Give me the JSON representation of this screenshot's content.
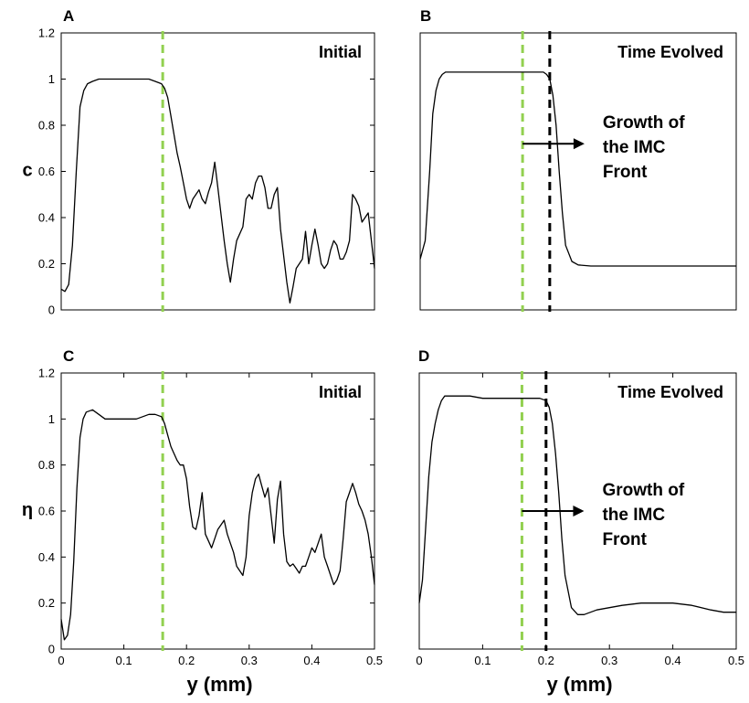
{
  "chart_data": [
    {
      "panel": "A",
      "type": "line",
      "inset_label": "Initial",
      "ylabel": "c",
      "xlabel": "",
      "xlim": [
        0,
        0.5
      ],
      "ylim": [
        0,
        1.2
      ],
      "x_ticks": [],
      "y_ticks": [
        "0",
        "0.2",
        "0.4",
        "0.6",
        "0.8",
        "1",
        "1.2"
      ],
      "y_tick_values": [
        0,
        0.2,
        0.4,
        0.6,
        0.8,
        1,
        1.2
      ],
      "vlines": [
        {
          "x": 0.162,
          "color": "#92d050"
        }
      ],
      "annotation": null,
      "series": [
        {
          "x": [
            0,
            0.006,
            0.012,
            0.018,
            0.024,
            0.03,
            0.036,
            0.042,
            0.05,
            0.06,
            0.07,
            0.08,
            0.09,
            0.1,
            0.11,
            0.12,
            0.13,
            0.14,
            0.15,
            0.16,
            0.165,
            0.17,
            0.175,
            0.18,
            0.185,
            0.19,
            0.195,
            0.2,
            0.205,
            0.21,
            0.215,
            0.22,
            0.225,
            0.23,
            0.235,
            0.24,
            0.245,
            0.25,
            0.26,
            0.265,
            0.27,
            0.275,
            0.28,
            0.285,
            0.29,
            0.295,
            0.3,
            0.305,
            0.31,
            0.315,
            0.32,
            0.325,
            0.33,
            0.335,
            0.34,
            0.345,
            0.35,
            0.36,
            0.365,
            0.37,
            0.375,
            0.38,
            0.385,
            0.39,
            0.395,
            0.4,
            0.405,
            0.41,
            0.415,
            0.42,
            0.425,
            0.43,
            0.435,
            0.44,
            0.445,
            0.45,
            0.455,
            0.46,
            0.465,
            0.47,
            0.475,
            0.48,
            0.485,
            0.49,
            0.495,
            0.5
          ],
          "y": [
            0.09,
            0.08,
            0.11,
            0.28,
            0.6,
            0.88,
            0.95,
            0.98,
            0.99,
            1.0,
            1.0,
            1.0,
            1.0,
            1.0,
            1.0,
            1.0,
            1.0,
            1.0,
            0.99,
            0.98,
            0.96,
            0.92,
            0.84,
            0.76,
            0.68,
            0.62,
            0.55,
            0.48,
            0.44,
            0.48,
            0.5,
            0.52,
            0.48,
            0.46,
            0.51,
            0.55,
            0.64,
            0.53,
            0.3,
            0.2,
            0.12,
            0.22,
            0.3,
            0.33,
            0.36,
            0.48,
            0.5,
            0.48,
            0.55,
            0.58,
            0.58,
            0.53,
            0.44,
            0.44,
            0.5,
            0.53,
            0.35,
            0.12,
            0.03,
            0.1,
            0.18,
            0.2,
            0.22,
            0.34,
            0.2,
            0.28,
            0.35,
            0.28,
            0.2,
            0.18,
            0.2,
            0.26,
            0.3,
            0.28,
            0.22,
            0.22,
            0.25,
            0.3,
            0.5,
            0.48,
            0.45,
            0.38,
            0.4,
            0.42,
            0.3,
            0.18
          ]
        }
      ]
    },
    {
      "panel": "B",
      "type": "line",
      "inset_label": "Time Evolved",
      "ylabel": "",
      "xlabel": "",
      "xlim": [
        0,
        0.5
      ],
      "ylim": [
        0,
        1.2
      ],
      "x_ticks": [],
      "y_ticks": [],
      "y_tick_values": [],
      "vlines": [
        {
          "x": 0.162,
          "color": "#92d050"
        },
        {
          "x": 0.205,
          "color": "#000000"
        }
      ],
      "annotation": {
        "lines": [
          "Growth of",
          "the IMC",
          "Front"
        ],
        "arrow_from_x": 0.162,
        "arrow_to_x": 0.26,
        "arrow_y": 0.72
      },
      "series": [
        {
          "x": [
            0,
            0.008,
            0.015,
            0.02,
            0.025,
            0.03,
            0.035,
            0.04,
            0.05,
            0.06,
            0.08,
            0.1,
            0.12,
            0.14,
            0.16,
            0.18,
            0.195,
            0.2,
            0.205,
            0.21,
            0.215,
            0.22,
            0.225,
            0.23,
            0.24,
            0.25,
            0.27,
            0.3,
            0.35,
            0.4,
            0.45,
            0.48,
            0.5
          ],
          "y": [
            0.22,
            0.3,
            0.6,
            0.85,
            0.95,
            1.0,
            1.02,
            1.03,
            1.03,
            1.03,
            1.03,
            1.03,
            1.03,
            1.03,
            1.03,
            1.03,
            1.03,
            1.02,
            1.0,
            0.93,
            0.8,
            0.6,
            0.42,
            0.28,
            0.21,
            0.195,
            0.19,
            0.19,
            0.19,
            0.19,
            0.19,
            0.19,
            0.19
          ]
        }
      ]
    },
    {
      "panel": "C",
      "type": "line",
      "inset_label": "Initial",
      "ylabel": "η",
      "xlabel": "y (mm)",
      "xlim": [
        0,
        0.5
      ],
      "ylim": [
        0,
        1.2
      ],
      "x_ticks": [
        "0",
        "0.1",
        "0.2",
        "0.3",
        "0.4",
        "0.5"
      ],
      "x_tick_values": [
        0,
        0.1,
        0.2,
        0.3,
        0.4,
        0.5
      ],
      "y_ticks": [
        "0",
        "0.2",
        "0.4",
        "0.6",
        "0.8",
        "1",
        "1.2"
      ],
      "y_tick_values": [
        0,
        0.2,
        0.4,
        0.6,
        0.8,
        1,
        1.2
      ],
      "vlines": [
        {
          "x": 0.162,
          "color": "#92d050"
        }
      ],
      "annotation": null,
      "series": [
        {
          "x": [
            0,
            0.005,
            0.01,
            0.015,
            0.02,
            0.025,
            0.03,
            0.035,
            0.04,
            0.05,
            0.06,
            0.07,
            0.08,
            0.09,
            0.1,
            0.11,
            0.12,
            0.13,
            0.14,
            0.15,
            0.16,
            0.165,
            0.17,
            0.175,
            0.18,
            0.185,
            0.19,
            0.195,
            0.2,
            0.205,
            0.21,
            0.215,
            0.22,
            0.225,
            0.23,
            0.235,
            0.24,
            0.245,
            0.25,
            0.26,
            0.265,
            0.27,
            0.275,
            0.28,
            0.29,
            0.295,
            0.3,
            0.305,
            0.31,
            0.315,
            0.32,
            0.325,
            0.33,
            0.335,
            0.34,
            0.345,
            0.35,
            0.355,
            0.36,
            0.365,
            0.37,
            0.375,
            0.38,
            0.385,
            0.39,
            0.395,
            0.4,
            0.405,
            0.41,
            0.415,
            0.42,
            0.425,
            0.43,
            0.435,
            0.44,
            0.445,
            0.45,
            0.455,
            0.46,
            0.465,
            0.47,
            0.475,
            0.48,
            0.485,
            0.49,
            0.495,
            0.5
          ],
          "y": [
            0.13,
            0.04,
            0.06,
            0.15,
            0.38,
            0.7,
            0.92,
            1.0,
            1.03,
            1.04,
            1.02,
            1.0,
            1.0,
            1.0,
            1.0,
            1.0,
            1.0,
            1.01,
            1.02,
            1.02,
            1.01,
            0.98,
            0.93,
            0.88,
            0.85,
            0.82,
            0.8,
            0.8,
            0.74,
            0.62,
            0.53,
            0.52,
            0.58,
            0.68,
            0.5,
            0.47,
            0.44,
            0.48,
            0.52,
            0.56,
            0.5,
            0.46,
            0.42,
            0.36,
            0.32,
            0.4,
            0.58,
            0.68,
            0.74,
            0.76,
            0.71,
            0.66,
            0.7,
            0.58,
            0.46,
            0.65,
            0.73,
            0.5,
            0.38,
            0.36,
            0.37,
            0.35,
            0.33,
            0.36,
            0.36,
            0.4,
            0.44,
            0.42,
            0.46,
            0.5,
            0.4,
            0.36,
            0.32,
            0.28,
            0.3,
            0.34,
            0.48,
            0.64,
            0.68,
            0.72,
            0.68,
            0.63,
            0.6,
            0.56,
            0.5,
            0.4,
            0.28
          ]
        }
      ]
    },
    {
      "panel": "D",
      "type": "line",
      "inset_label": "Time Evolved",
      "ylabel": "",
      "xlabel": "y (mm)",
      "xlim": [
        0,
        0.5
      ],
      "ylim": [
        0,
        1.2
      ],
      "x_ticks": [
        "0",
        "0.1",
        "0.2",
        "0.3",
        "0.4",
        "0.5"
      ],
      "x_tick_values": [
        0,
        0.1,
        0.2,
        0.3,
        0.4,
        0.5
      ],
      "y_ticks": [],
      "y_tick_values": [],
      "vlines": [
        {
          "x": 0.162,
          "color": "#92d050"
        },
        {
          "x": 0.2,
          "color": "#000000"
        }
      ],
      "annotation": {
        "lines": [
          "Growth of",
          "the IMC",
          "Front"
        ],
        "arrow_from_x": 0.162,
        "arrow_to_x": 0.26,
        "arrow_y": 0.6
      },
      "series": [
        {
          "x": [
            0,
            0.005,
            0.01,
            0.015,
            0.02,
            0.025,
            0.03,
            0.035,
            0.04,
            0.05,
            0.06,
            0.08,
            0.1,
            0.12,
            0.14,
            0.16,
            0.18,
            0.19,
            0.2,
            0.205,
            0.21,
            0.215,
            0.22,
            0.225,
            0.23,
            0.24,
            0.25,
            0.26,
            0.28,
            0.3,
            0.32,
            0.35,
            0.37,
            0.4,
            0.43,
            0.46,
            0.48,
            0.5
          ],
          "y": [
            0.2,
            0.3,
            0.52,
            0.75,
            0.9,
            0.98,
            1.04,
            1.08,
            1.1,
            1.1,
            1.1,
            1.1,
            1.09,
            1.09,
            1.09,
            1.09,
            1.09,
            1.09,
            1.08,
            1.05,
            0.98,
            0.85,
            0.68,
            0.48,
            0.32,
            0.18,
            0.15,
            0.15,
            0.17,
            0.18,
            0.19,
            0.2,
            0.2,
            0.2,
            0.19,
            0.17,
            0.16,
            0.16
          ]
        }
      ]
    }
  ]
}
